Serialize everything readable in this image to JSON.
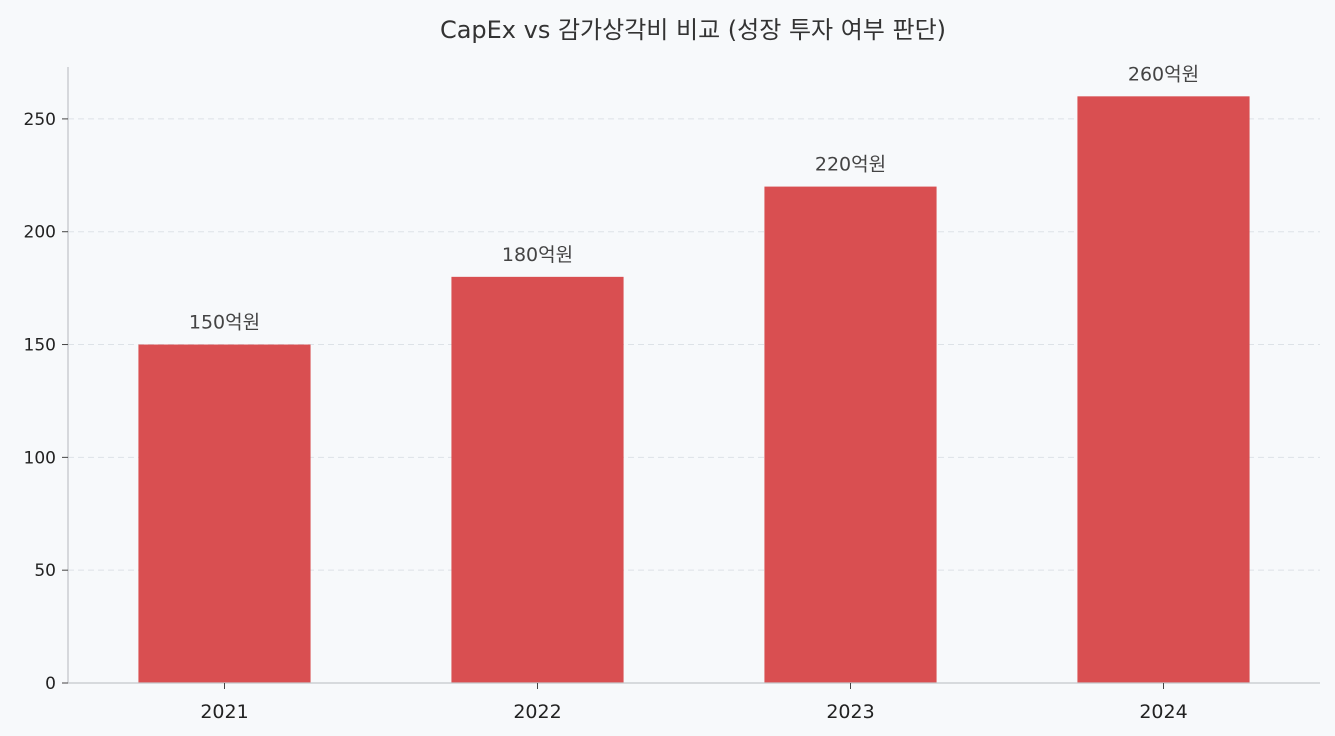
{
  "chart_data": {
    "type": "bar",
    "title": "CapEx vs 감가상각비 비교 (성장 투자 여부 판단)",
    "xlabel": "",
    "ylabel": "",
    "categories": [
      "2021",
      "2022",
      "2023",
      "2024"
    ],
    "series": [
      {
        "values": [
          150,
          180,
          220,
          260
        ],
        "color": "#d94f51"
      }
    ],
    "data_labels": [
      "150억원",
      "180억원",
      "220억원",
      "260억원"
    ],
    "yticks": [
      0,
      50,
      100,
      150,
      200,
      250
    ],
    "ylim": [
      0,
      273
    ],
    "grid": true,
    "grid_axis": "y",
    "legend": false
  }
}
